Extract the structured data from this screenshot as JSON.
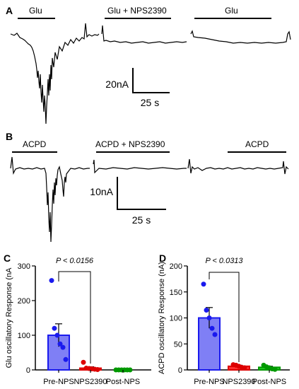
{
  "panel_letters": {
    "a": "A",
    "b": "B",
    "c": "C",
    "d": "D"
  },
  "panel_a": {
    "bars": [
      "Glu",
      "Glu + NPS2390",
      "Glu"
    ],
    "scale": {
      "y_label": "20nA",
      "x_label": "25 s"
    }
  },
  "panel_b": {
    "bars": [
      "ACPD",
      "ACPD + NPS2390",
      "ACPD"
    ],
    "scale": {
      "y_label": "10nA",
      "x_label": "25 s"
    }
  },
  "chart_data": [
    {
      "type": "bar",
      "panel": "C",
      "ylabel": "Glu oscillatory  Response (nA",
      "ylim": [
        0,
        300
      ],
      "yticks": [
        0,
        100,
        200,
        300
      ],
      "categories": [
        "Pre-NPS",
        "NPS2390",
        "Post-NPS"
      ],
      "values": [
        100,
        5,
        0
      ],
      "errors": [
        33,
        4,
        0
      ],
      "colors": {
        "fill": [
          "#7f7ff5",
          "#ff3030",
          "#22cc22"
        ],
        "edge": [
          "#1a1aee",
          "#dd0000",
          "#009900"
        ]
      },
      "points": [
        [
          258,
          120,
          100,
          75,
          65,
          30
        ],
        [
          22,
          5,
          4,
          3,
          2,
          1
        ],
        [
          0,
          0,
          0,
          0,
          0,
          0
        ]
      ],
      "annotation": "P < 0.0156"
    },
    {
      "type": "bar",
      "panel": "D",
      "ylabel": "ACPD oscillatory  Response (nA)",
      "ylim": [
        0,
        200
      ],
      "yticks": [
        0,
        50,
        100,
        150,
        200
      ],
      "categories": [
        "Pre-NPS",
        "NPS2390",
        "Post-NPS"
      ],
      "values": [
        100,
        7,
        5
      ],
      "errors": [
        20,
        2,
        2
      ],
      "colors": {
        "fill": [
          "#7f7ff5",
          "#ff3030",
          "#22cc22"
        ],
        "edge": [
          "#1a1aee",
          "#dd0000",
          "#009900"
        ]
      },
      "points": [
        [
          165,
          115,
          100,
          80,
          68
        ],
        [
          10,
          9,
          7,
          5,
          4
        ],
        [
          9,
          6,
          4,
          2,
          1
        ]
      ],
      "annotation": "P < 0.0313"
    }
  ]
}
